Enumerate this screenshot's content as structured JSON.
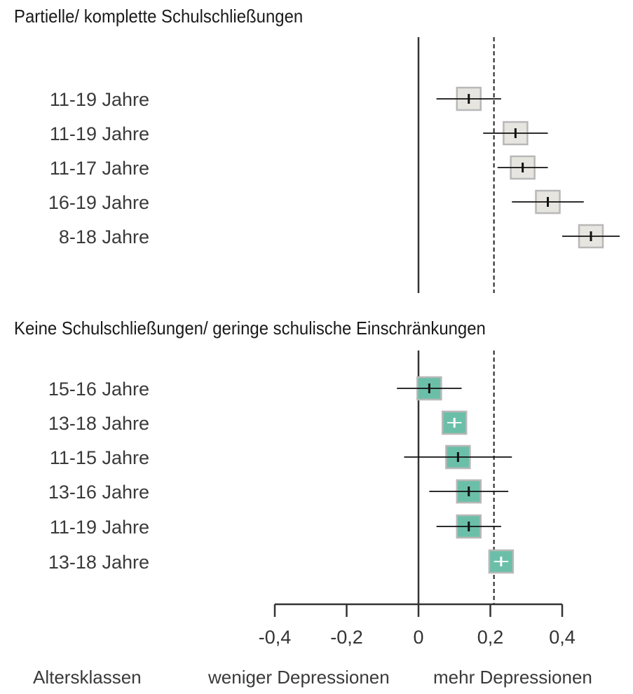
{
  "chart_data": {
    "type": "forest",
    "x_min": -0.4,
    "x_max": 0.4,
    "x_ticks": [
      -0.4,
      -0.2,
      0,
      0.2,
      0.4
    ],
    "x_tick_labels": [
      "-0,4",
      "-0,2",
      "0",
      "0,2",
      "0,4"
    ],
    "reference_line": 0.21,
    "footer": {
      "left": "Altersklassen",
      "middle": "weniger Depressionen",
      "right": "mehr Depressionen"
    },
    "colors": {
      "group1_fill": "#e6e5e0",
      "group2_fill": "#6bbfa8",
      "box_stroke": "#b8b8b8",
      "group2_marker": "#ffffff"
    },
    "groups": [
      {
        "title": "Partielle/ komplette Schulschließungen",
        "rows": [
          {
            "label": "11-19 Jahre",
            "estimate": 0.14,
            "ci_low": 0.05,
            "ci_high": 0.23
          },
          {
            "label": "11-19 Jahre",
            "estimate": 0.27,
            "ci_low": 0.18,
            "ci_high": 0.36
          },
          {
            "label": "11-17 Jahre",
            "estimate": 0.29,
            "ci_low": 0.22,
            "ci_high": 0.36
          },
          {
            "label": "16-19 Jahre",
            "estimate": 0.36,
            "ci_low": 0.26,
            "ci_high": 0.46
          },
          {
            "label": "8-18 Jahre",
            "estimate": 0.48,
            "ci_low": 0.4,
            "ci_high": 0.56
          }
        ]
      },
      {
        "title": "Keine Schulschließungen/ geringe schulische Einschränkungen",
        "rows": [
          {
            "label": "15-16 Jahre",
            "estimate": 0.03,
            "ci_low": -0.06,
            "ci_high": 0.12
          },
          {
            "label": "13-18 Jahre",
            "estimate": 0.1,
            "ci_low": 0.08,
            "ci_high": 0.12
          },
          {
            "label": "11-15 Jahre",
            "estimate": 0.11,
            "ci_low": -0.04,
            "ci_high": 0.26
          },
          {
            "label": "13-16 Jahre",
            "estimate": 0.14,
            "ci_low": 0.03,
            "ci_high": 0.25
          },
          {
            "label": "11-19 Jahre",
            "estimate": 0.14,
            "ci_low": 0.05,
            "ci_high": 0.23
          },
          {
            "label": "13-18 Jahre",
            "estimate": 0.23,
            "ci_low": 0.21,
            "ci_high": 0.25
          }
        ]
      }
    ]
  }
}
